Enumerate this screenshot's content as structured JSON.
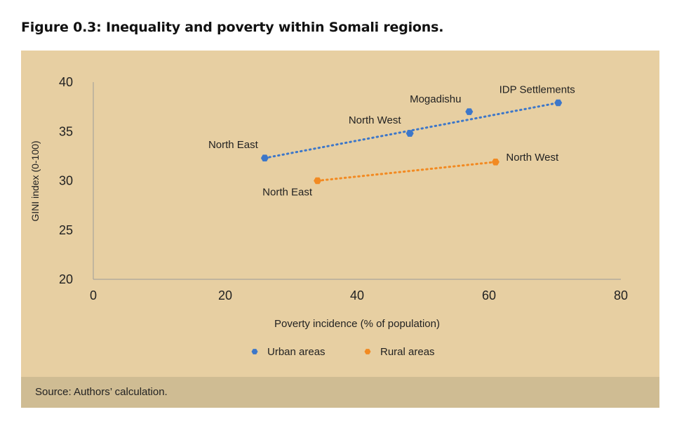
{
  "figure": {
    "title": "Figure 0.3: Inequality and poverty within Somali regions.",
    "source": "Source: Authors’ calculation."
  },
  "colors": {
    "panel": "#e7cfa2",
    "source_bar": "#cfbc93",
    "urban": "#3d77c9",
    "rural": "#f28a22",
    "axis": "#9b9b9b"
  },
  "chart_data": {
    "type": "scatter",
    "title": "Inequality and poverty within Somali regions",
    "xlabel": "Poverty incidence (% of population)",
    "ylabel": "GINI index (0-100)",
    "xlim": [
      0,
      80
    ],
    "ylim": [
      20,
      40
    ],
    "xticks": [
      0,
      20,
      40,
      60,
      80
    ],
    "yticks": [
      20,
      25,
      30,
      35,
      40
    ],
    "grid": false,
    "legend_position": "bottom",
    "series": [
      {
        "name": "Urban areas",
        "color": "#3d77c9",
        "trendline": "dotted",
        "points": [
          {
            "label": "North East",
            "x": 26,
            "y": 32.3
          },
          {
            "label": "North West",
            "x": 48,
            "y": 34.8
          },
          {
            "label": "Mogadishu",
            "x": 57,
            "y": 37
          },
          {
            "label": "IDP Settlements",
            "x": 70.5,
            "y": 37.9
          }
        ]
      },
      {
        "name": "Rural areas",
        "color": "#f28a22",
        "trendline": "dotted",
        "points": [
          {
            "label": "North East",
            "x": 34,
            "y": 30
          },
          {
            "label": "North West",
            "x": 61,
            "y": 31.9
          }
        ]
      }
    ]
  }
}
